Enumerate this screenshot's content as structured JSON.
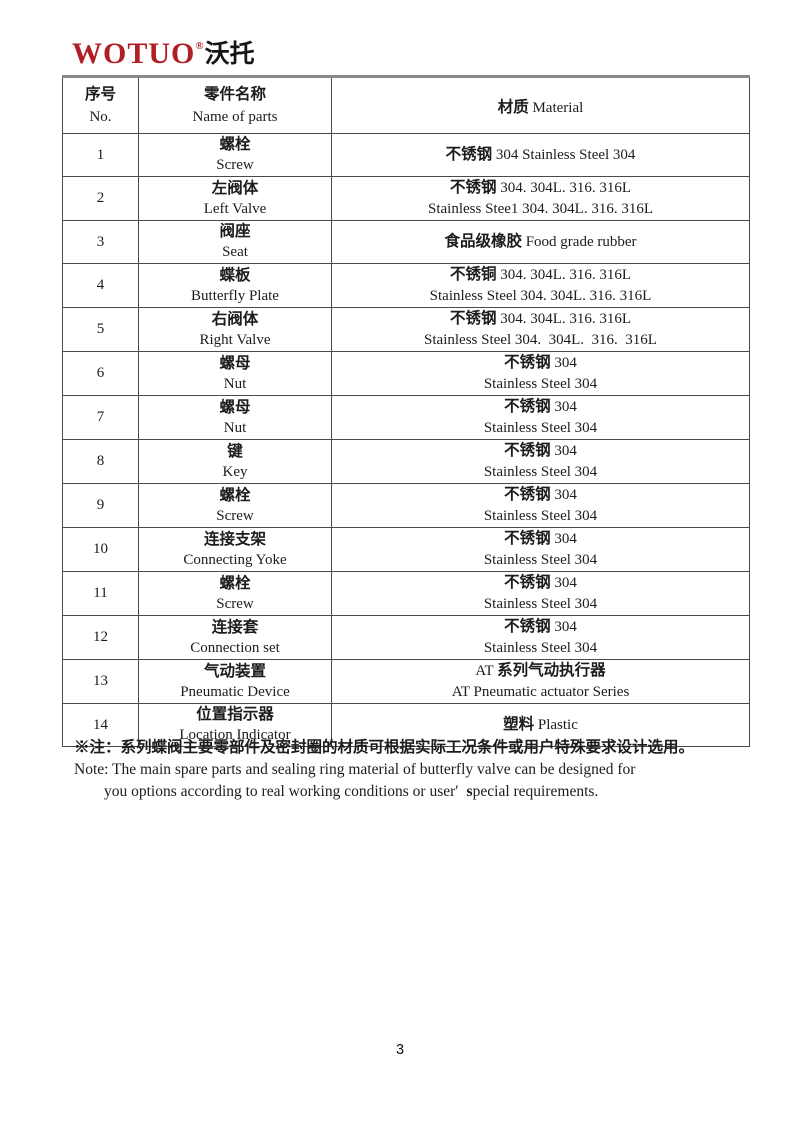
{
  "logo": {
    "wordmark": "WOTUO",
    "registered_mark": "®",
    "chinese_name": "沃托",
    "brand_color": "#b01f26"
  },
  "table": {
    "header": {
      "no_cn": "序号",
      "no_en": "No.",
      "name_cn": "零件名称",
      "name_en": "Name of parts",
      "material_cn": "材质",
      "material_en": " Material"
    },
    "rows": [
      {
        "no": "1",
        "name_cn": "螺栓",
        "name_en": "Screw",
        "mat_lines": [
          [
            {
              "t": "不锈钢",
              "b": 1
            },
            {
              "t": " 304 Stainless Steel 304",
              "b": 0
            }
          ]
        ]
      },
      {
        "no": "2",
        "name_cn": "左阀体",
        "name_en": "Left Valve",
        "mat_lines": [
          [
            {
              "t": "不锈钢",
              "b": 1
            },
            {
              "t": " 304. 304L. 316. 316L",
              "b": 0
            }
          ],
          [
            {
              "t": "Stainless Stee1 304. 304L. 316. 316L",
              "b": 0
            }
          ]
        ]
      },
      {
        "no": "3",
        "name_cn": "阀座",
        "name_en": "Seat",
        "mat_lines": [
          [
            {
              "t": "食品级橡胶",
              "b": 1
            },
            {
              "t": " Food grade rubber",
              "b": 0
            }
          ]
        ]
      },
      {
        "no": "4",
        "name_cn": "蝶板",
        "name_en": "Butterfly Plate",
        "mat_lines": [
          [
            {
              "t": "不锈铜",
              "b": 1
            },
            {
              "t": " 304. 304L. 316. 316L",
              "b": 0
            }
          ],
          [
            {
              "t": "Stainless Steel 304. 304L. 316. 316L",
              "b": 0
            }
          ]
        ]
      },
      {
        "no": "5",
        "name_cn": "右阀体",
        "name_en": "Right Valve",
        "mat_lines": [
          [
            {
              "t": "不锈钢",
              "b": 1
            },
            {
              "t": " 304. 304L. 316. 316L",
              "b": 0
            }
          ],
          [
            {
              "t": "Stainless Steel 304.  304L.  316.  316L",
              "b": 0
            }
          ]
        ]
      },
      {
        "no": "6",
        "name_cn": "螺母",
        "name_en": "Nut",
        "mat_lines": [
          [
            {
              "t": "不锈钢",
              "b": 1
            },
            {
              "t": " 304",
              "b": 0
            }
          ],
          [
            {
              "t": "Stainless Steel 304",
              "b": 0
            }
          ]
        ]
      },
      {
        "no": "7",
        "name_cn": "螺母",
        "name_en": "Nut",
        "mat_lines": [
          [
            {
              "t": "不锈钢",
              "b": 1
            },
            {
              "t": " 304",
              "b": 0
            }
          ],
          [
            {
              "t": "Stainless Steel 304",
              "b": 0
            }
          ]
        ]
      },
      {
        "no": "8",
        "name_cn": "键",
        "name_en": "Key",
        "mat_lines": [
          [
            {
              "t": "不锈钢",
              "b": 1
            },
            {
              "t": " 304",
              "b": 0
            }
          ],
          [
            {
              "t": "Stainless Steel 304",
              "b": 0
            }
          ]
        ]
      },
      {
        "no": "9",
        "name_cn": "螺栓",
        "name_en": "Screw",
        "mat_lines": [
          [
            {
              "t": "不锈钢",
              "b": 1
            },
            {
              "t": " 304",
              "b": 0
            }
          ],
          [
            {
              "t": "Stainless Steel 304",
              "b": 0
            }
          ]
        ]
      },
      {
        "no": "10",
        "name_cn": "连接支架",
        "name_en": "Connecting Yoke",
        "mat_lines": [
          [
            {
              "t": "不锈钢",
              "b": 1
            },
            {
              "t": " 304",
              "b": 0
            }
          ],
          [
            {
              "t": "Stainless Steel 304",
              "b": 0
            }
          ]
        ]
      },
      {
        "no": "11",
        "name_cn": "螺栓",
        "name_en": "Screw",
        "mat_lines": [
          [
            {
              "t": "不锈钢",
              "b": 1
            },
            {
              "t": " 304",
              "b": 0
            }
          ],
          [
            {
              "t": "Stainless Steel 304",
              "b": 0
            }
          ]
        ]
      },
      {
        "no": "12",
        "name_cn": "连接套",
        "name_en": "Connection set",
        "mat_lines": [
          [
            {
              "t": "不锈钢",
              "b": 1
            },
            {
              "t": " 304",
              "b": 0
            }
          ],
          [
            {
              "t": "Stainless Steel 304",
              "b": 0
            }
          ]
        ]
      },
      {
        "no": "13",
        "name_cn": "气动装置",
        "name_en": "Pneumatic Device",
        "mat_lines": [
          [
            {
              "t": "AT ",
              "b": 0
            },
            {
              "t": "系列气动执行器",
              "b": 1
            }
          ],
          [
            {
              "t": "AT Pneumatic actuator Series",
              "b": 0
            }
          ]
        ]
      },
      {
        "no": "14",
        "name_cn": "位置指示器",
        "name_en": "Location Indicator",
        "mat_lines": [
          [
            {
              "t": "塑料",
              "b": 1
            },
            {
              "t": " Plastic",
              "b": 0
            }
          ]
        ]
      }
    ]
  },
  "note": {
    "cn": "※注：系列蝶阀主要零部件及密封圈的材质可根据实际工况条件或用户特殊要求设计选用。",
    "en_line1": "Note: The main spare parts and sealing ring material of butterfly valve can be designed for",
    "en_line2_pre": "you options according to real working conditions or user′  ",
    "en_line2_bold": "s",
    "en_line2_post": "pecial requirements."
  },
  "footer": {
    "page_number": "3"
  }
}
